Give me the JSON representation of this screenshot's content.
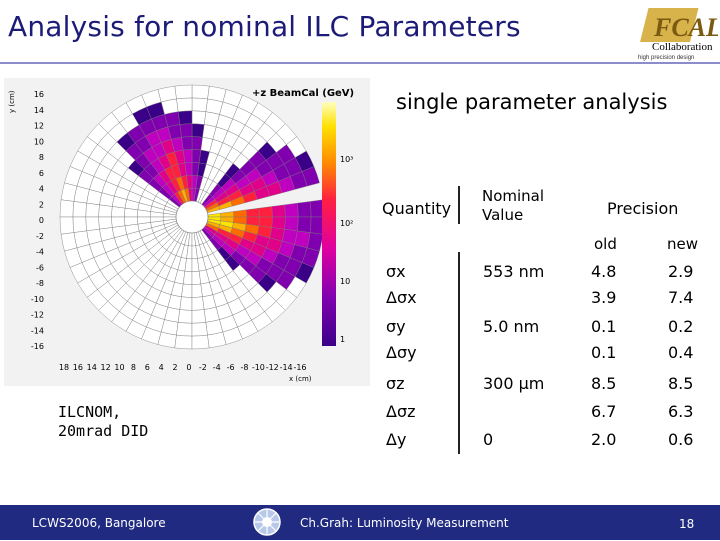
{
  "title": "Analysis for nominal ILC Parameters",
  "logo": {
    "letters": "FCAL",
    "word": "Collaboration",
    "tagline": "high precision design"
  },
  "subtitle": "single parameter analysis",
  "plot": {
    "axis_title": "+z BeamCal (GeV)",
    "y_label": "y (cm)",
    "x_label": "x (cm)",
    "y_ticks": [
      "16",
      "14",
      "12",
      "10",
      "8",
      "6",
      "4",
      "2",
      "0",
      "-2",
      "-4",
      "-6",
      "-8",
      "-10",
      "-12",
      "-14",
      "-16"
    ],
    "x_ticks": [
      "18",
      "16",
      "14",
      "12",
      "10",
      "8",
      "6",
      "4",
      "2",
      "0",
      "-2",
      "-4",
      "-6",
      "-8",
      "-10",
      "-12",
      "-14",
      "-16"
    ],
    "colorbar_ticks": [
      "10³",
      "10²",
      "10",
      "1"
    ]
  },
  "plot_caption": {
    "line1": "ILCNOM,",
    "line2": "20mrad DID"
  },
  "table": {
    "header_quantity": "Quantity",
    "header_nominal_line1": "Nominal",
    "header_nominal_line2": "Value",
    "header_precision": "Precision",
    "sub_old": "old",
    "sub_new": "new",
    "rows": [
      {
        "quantity": "σx",
        "nominal": "553 nm",
        "old": "4.8",
        "new": "2.9"
      },
      {
        "quantity": "Δσx",
        "nominal": "",
        "old": "3.9",
        "new": "7.4"
      },
      {
        "quantity": "σy",
        "nominal": "5.0 nm",
        "old": "0.1",
        "new": "0.2"
      },
      {
        "quantity": "Δσy",
        "nominal": "",
        "old": "0.1",
        "new": "0.4"
      },
      {
        "quantity": "σz",
        "nominal": "300 μm",
        "old": "8.5",
        "new": "8.5"
      },
      {
        "quantity": "Δσz",
        "nominal": "",
        "old": "6.7",
        "new": "6.3"
      },
      {
        "quantity": "Δy",
        "nominal": "0",
        "old": "2.0",
        "new": "0.6"
      }
    ]
  },
  "footer": {
    "left": "LCWS2006, Bangalore",
    "center": "Ch.Grah: Luminosity Measurement",
    "page": "18"
  },
  "colors": {
    "title": "#1c1c78",
    "footer_bg": "#1f2a80"
  }
}
